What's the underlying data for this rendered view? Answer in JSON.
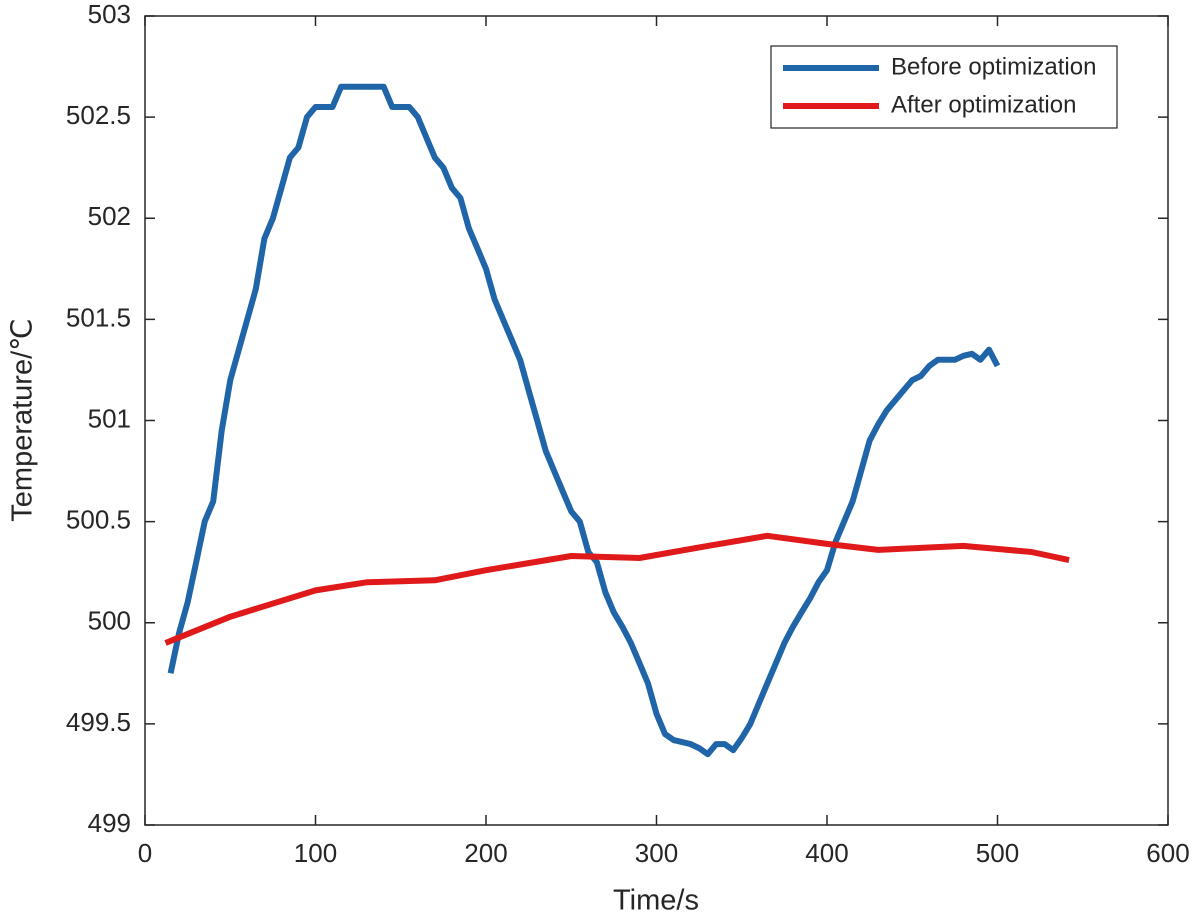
{
  "chart_data": {
    "type": "line",
    "xlabel": "Time/s",
    "ylabel": "Temperature/℃",
    "xlim": [
      0,
      600
    ],
    "xticks": [
      0,
      100,
      200,
      300,
      400,
      500,
      600
    ],
    "ylim": [
      499,
      503
    ],
    "yticks": [
      499,
      499.5,
      500,
      500.5,
      501,
      501.5,
      502,
      502.5,
      503
    ],
    "legend": "upper right",
    "grid": false,
    "series": [
      {
        "name": "Before optimization",
        "color": "#1f65a8",
        "x": [
          15,
          20,
          25,
          30,
          35,
          40,
          45,
          50,
          55,
          60,
          65,
          70,
          75,
          80,
          85,
          90,
          95,
          100,
          110,
          115,
          125,
          140,
          145,
          155,
          160,
          165,
          170,
          175,
          180,
          185,
          190,
          195,
          200,
          205,
          210,
          215,
          220,
          225,
          230,
          235,
          240,
          245,
          250,
          255,
          260,
          265,
          270,
          275,
          280,
          285,
          290,
          295,
          300,
          305,
          310,
          320,
          325,
          330,
          335,
          340,
          345,
          350,
          355,
          360,
          365,
          370,
          375,
          380,
          385,
          390,
          395,
          400,
          405,
          410,
          415,
          420,
          425,
          430,
          435,
          440,
          445,
          450,
          455,
          460,
          465,
          470,
          475,
          480,
          485,
          490,
          495,
          500
        ],
        "values": [
          499.75,
          499.95,
          500.1,
          500.3,
          500.5,
          500.6,
          500.95,
          501.2,
          501.35,
          501.5,
          501.65,
          501.9,
          502.0,
          502.15,
          502.3,
          502.35,
          502.5,
          502.55,
          502.55,
          502.65,
          502.65,
          502.65,
          502.55,
          502.55,
          502.5,
          502.4,
          502.3,
          502.25,
          502.15,
          502.1,
          501.95,
          501.85,
          501.75,
          501.6,
          501.5,
          501.4,
          501.3,
          501.15,
          501.0,
          500.85,
          500.75,
          500.65,
          500.55,
          500.5,
          500.35,
          500.3,
          500.15,
          500.05,
          499.98,
          499.9,
          499.8,
          499.7,
          499.55,
          499.45,
          499.42,
          499.4,
          499.38,
          499.35,
          499.4,
          499.4,
          499.37,
          499.43,
          499.5,
          499.6,
          499.7,
          499.8,
          499.9,
          499.98,
          500.05,
          500.12,
          500.2,
          500.26,
          500.4,
          500.5,
          500.6,
          500.75,
          500.9,
          500.98,
          501.05,
          501.1,
          501.15,
          501.2,
          501.22,
          501.27,
          501.3,
          501.3,
          501.3,
          501.32,
          501.33,
          501.3,
          501.35,
          501.27
        ]
      },
      {
        "name": "After optimization",
        "color": "#e01a1a",
        "x": [
          12,
          50,
          100,
          130,
          170,
          200,
          250,
          290,
          330,
          365,
          400,
          430,
          480,
          520,
          542
        ],
        "values": [
          499.9,
          500.03,
          500.16,
          500.2,
          500.21,
          500.26,
          500.33,
          500.32,
          500.38,
          500.43,
          500.39,
          500.36,
          500.38,
          500.35,
          500.31
        ]
      }
    ]
  }
}
